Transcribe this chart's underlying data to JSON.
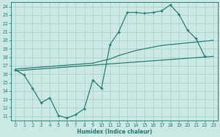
{
  "xlabel": "Humidex (Indice chaleur)",
  "bg_color": "#cce8e5",
  "grid_color": "#aacfcc",
  "line_color": "#1a7a6e",
  "xlim": [
    -0.5,
    23.5
  ],
  "ylim": [
    10.5,
    24.5
  ],
  "xticks": [
    0,
    1,
    2,
    3,
    4,
    5,
    6,
    7,
    8,
    9,
    10,
    11,
    12,
    13,
    14,
    15,
    16,
    17,
    18,
    19,
    20,
    21,
    22,
    23
  ],
  "yticks": [
    11,
    12,
    13,
    14,
    15,
    16,
    17,
    18,
    19,
    20,
    21,
    22,
    23,
    24
  ],
  "line_zigzag": [
    [
      0,
      16.5
    ],
    [
      1,
      15.9
    ],
    [
      2,
      14.3
    ],
    [
      3,
      12.6
    ],
    [
      4,
      13.2
    ],
    [
      5,
      11.1
    ],
    [
      6,
      10.8
    ],
    [
      7,
      11.2
    ],
    [
      8,
      11.9
    ],
    [
      9,
      15.3
    ],
    [
      10,
      14.3
    ],
    [
      11,
      19.5
    ],
    [
      12,
      21.0
    ],
    [
      13,
      23.3
    ],
    [
      14,
      23.3
    ],
    [
      15,
      23.2
    ],
    [
      16,
      23.3
    ],
    [
      17,
      23.5
    ],
    [
      18,
      24.2
    ],
    [
      19,
      23.1
    ],
    [
      20,
      21.2
    ],
    [
      21,
      20.2
    ],
    [
      22,
      18.1
    ]
  ],
  "line_lower": [
    [
      0,
      16.4
    ],
    [
      23,
      18.1
    ]
  ],
  "line_upper": [
    [
      0,
      16.6
    ],
    [
      9,
      17.3
    ],
    [
      11,
      17.8
    ],
    [
      12,
      18.2
    ],
    [
      13,
      18.5
    ],
    [
      14,
      18.8
    ],
    [
      15,
      19.0
    ],
    [
      16,
      19.2
    ],
    [
      17,
      19.4
    ],
    [
      18,
      19.5
    ],
    [
      19,
      19.6
    ],
    [
      20,
      19.7
    ],
    [
      21,
      19.8
    ],
    [
      22,
      19.9
    ],
    [
      23,
      20.0
    ]
  ]
}
